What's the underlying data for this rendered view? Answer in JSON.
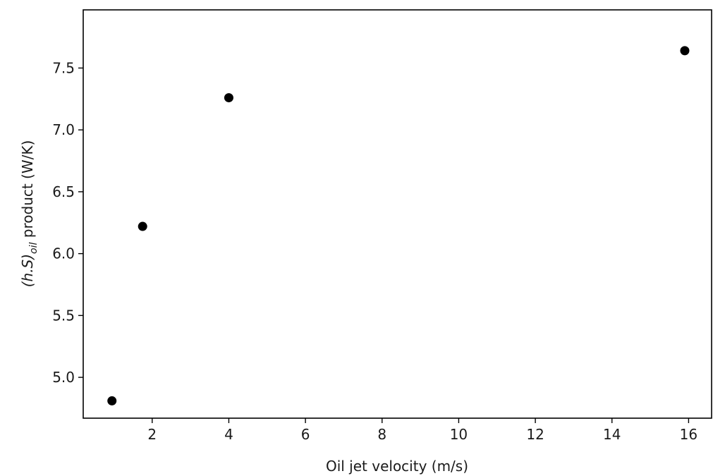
{
  "chart_data": {
    "type": "scatter",
    "title": "",
    "xlabel": "Oil jet velocity (m/s)",
    "ylabel": {
      "pre": "(h.S)",
      "sub": "oil",
      "post": " product (W/K)"
    },
    "xlim": [
      0.2,
      16.6
    ],
    "ylim": [
      4.67,
      7.97
    ],
    "xticks": [
      2,
      4,
      6,
      8,
      10,
      12,
      14,
      16
    ],
    "xtick_labels": [
      "2",
      "4",
      "6",
      "8",
      "10",
      "12",
      "14",
      "16"
    ],
    "yticks": [
      5.0,
      5.5,
      6.0,
      6.5,
      7.0,
      7.5
    ],
    "ytick_labels": [
      "5.0",
      "5.5",
      "6.0",
      "6.5",
      "7.0",
      "7.5"
    ],
    "grid": false,
    "marker_color": "#000000",
    "series": [
      {
        "x": [
          0.95,
          1.75,
          4.0,
          15.9
        ],
        "y": [
          4.81,
          6.22,
          7.26,
          7.64
        ]
      }
    ]
  }
}
